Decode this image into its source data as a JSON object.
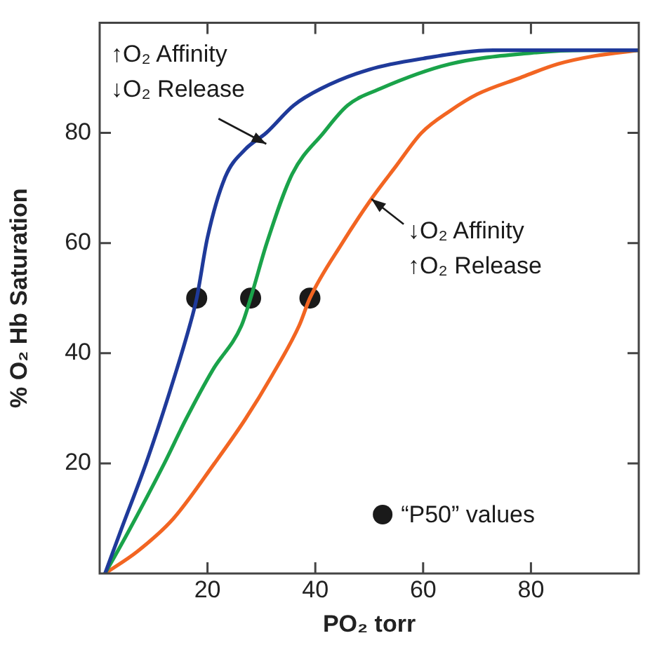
{
  "chart_data": {
    "type": "line",
    "xlabel": "PO₂ torr",
    "ylabel": "% O₂ Hb Saturation",
    "xlim": [
      0,
      100
    ],
    "ylim": [
      0,
      100
    ],
    "xticks": [
      20,
      40,
      60,
      80
    ],
    "yticks": [
      20,
      40,
      60,
      80
    ],
    "grid": false,
    "legend": "bottom right",
    "marker": "none",
    "line_style": "solid",
    "series": [
      {
        "color": "#1f3a9a",
        "x": [
          1,
          4,
          8.6,
          13,
          16.7,
          18,
          20,
          23.3,
          27,
          30.9,
          36,
          41,
          50,
          60,
          73,
          85,
          100
        ],
        "values": [
          0,
          8,
          20,
          33,
          45,
          50,
          61,
          72,
          77,
          80,
          85,
          88,
          91.5,
          93.5,
          95,
          95,
          95
        ]
      },
      {
        "color": "#1aa34a",
        "x": [
          1,
          5,
          12,
          16,
          21,
          26.3,
          28,
          31,
          35.7,
          41.5,
          46,
          52,
          65,
          80,
          90,
          100
        ],
        "values": [
          0,
          7,
          20,
          28,
          37,
          45,
          50,
          60,
          72.5,
          80,
          85,
          88,
          92.5,
          94.5,
          95,
          95
        ]
      },
      {
        "color": "#f26522",
        "x": [
          1,
          7,
          13.7,
          21.3,
          27,
          32,
          37,
          39,
          45,
          50.4,
          55,
          59.7,
          65,
          70,
          78,
          85,
          92,
          100
        ],
        "values": [
          0,
          4,
          10,
          20,
          28,
          36,
          45,
          50,
          60,
          68,
          74,
          80,
          84,
          87,
          90,
          92.5,
          94,
          95
        ]
      },
      {
        "type": "scatter",
        "name": "“P50” values",
        "color": "#1a1a1a",
        "marker": "circle",
        "x": [
          18,
          28,
          39
        ],
        "values": [
          50,
          50,
          50
        ]
      }
    ],
    "annotations": [
      {
        "text": "↑O₂ Affinity\n↓O₂ Release",
        "x": 30.9,
        "y": 78
      },
      {
        "text": "↓O₂ Affinity\n↑O₂ Release",
        "x": 50.4,
        "y": 68
      }
    ]
  }
}
